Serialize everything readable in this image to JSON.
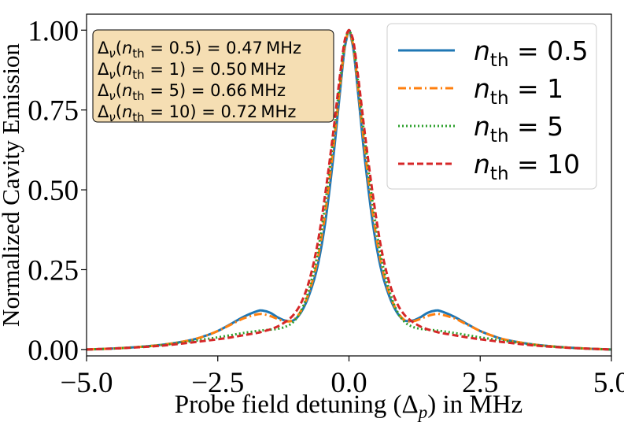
{
  "chart_data": {
    "type": "line",
    "title": "",
    "xlabel": "Probe field detuning (Δ",
    "xlabel_sub": "p",
    "xlabel_tail": ") in MHz",
    "ylabel": "Normalized Cavity Emission",
    "xlim": [
      -5.0,
      5.0
    ],
    "ylim": [
      -0.02,
      1.05
    ],
    "xticks": [
      -5.0,
      -2.5,
      0.0,
      2.5,
      5.0
    ],
    "xtick_labels": [
      "−5.0",
      "−2.5",
      "0.0",
      "2.5",
      "5.0"
    ],
    "yticks": [
      0.0,
      0.25,
      0.5,
      0.75,
      1.0
    ],
    "ytick_labels": [
      "0.00",
      "0.25",
      "0.50",
      "0.75",
      "1.00"
    ],
    "grid": false,
    "legend_position": "top-right",
    "x": [
      -5.0,
      -4.5,
      -4.0,
      -3.5,
      -3.0,
      -2.75,
      -2.5,
      -2.25,
      -2.0,
      -1.75,
      -1.65,
      -1.5,
      -1.35,
      -1.2,
      -1.05,
      -0.9,
      -0.75,
      -0.6,
      -0.45,
      -0.3,
      -0.2,
      -0.1,
      -0.05,
      0.0,
      0.05,
      0.1,
      0.2,
      0.3,
      0.45,
      0.6,
      0.75,
      0.9,
      1.05,
      1.2,
      1.35,
      1.5,
      1.65,
      1.75,
      2.0,
      2.25,
      2.5,
      2.75,
      3.0,
      3.5,
      4.0,
      4.5,
      5.0
    ],
    "series": [
      {
        "name": "n_th = 0.5",
        "legend_base": "n",
        "legend_sub": "th",
        "legend_value": "0.5",
        "color": "#1f77b4",
        "dash": "none",
        "values": [
          0.0,
          0.003,
          0.008,
          0.016,
          0.03,
          0.042,
          0.058,
          0.08,
          0.103,
          0.12,
          0.122,
          0.115,
          0.1,
          0.09,
          0.092,
          0.12,
          0.175,
          0.26,
          0.4,
          0.6,
          0.76,
          0.92,
          0.97,
          1.0,
          0.97,
          0.92,
          0.76,
          0.6,
          0.4,
          0.26,
          0.175,
          0.12,
          0.092,
          0.09,
          0.1,
          0.115,
          0.122,
          0.12,
          0.103,
          0.08,
          0.058,
          0.042,
          0.03,
          0.016,
          0.008,
          0.003,
          0.0
        ]
      },
      {
        "name": "n_th = 1",
        "legend_base": "n",
        "legend_sub": "th",
        "legend_value": "1",
        "color": "#ff7f0e",
        "dash": "10 4 2 4",
        "values": [
          0.0,
          0.003,
          0.008,
          0.016,
          0.03,
          0.042,
          0.058,
          0.078,
          0.098,
          0.11,
          0.111,
          0.105,
          0.095,
          0.088,
          0.093,
          0.125,
          0.185,
          0.28,
          0.43,
          0.63,
          0.78,
          0.93,
          0.975,
          1.0,
          0.975,
          0.93,
          0.78,
          0.63,
          0.43,
          0.28,
          0.185,
          0.125,
          0.093,
          0.088,
          0.095,
          0.105,
          0.111,
          0.11,
          0.098,
          0.078,
          0.058,
          0.042,
          0.03,
          0.016,
          0.008,
          0.003,
          0.0
        ]
      },
      {
        "name": "n_th = 5",
        "legend_base": "n",
        "legend_sub": "th",
        "legend_value": "5",
        "color": "#2ca02c",
        "dash": "2 3",
        "values": [
          0.0,
          0.003,
          0.008,
          0.015,
          0.026,
          0.032,
          0.038,
          0.045,
          0.052,
          0.058,
          0.06,
          0.062,
          0.065,
          0.072,
          0.088,
          0.125,
          0.195,
          0.3,
          0.46,
          0.66,
          0.8,
          0.94,
          0.98,
          1.0,
          0.98,
          0.94,
          0.8,
          0.66,
          0.46,
          0.3,
          0.195,
          0.125,
          0.088,
          0.072,
          0.065,
          0.062,
          0.06,
          0.058,
          0.052,
          0.045,
          0.038,
          0.032,
          0.026,
          0.015,
          0.008,
          0.003,
          0.0
        ]
      },
      {
        "name": "n_th = 10",
        "legend_base": "n",
        "legend_sub": "th",
        "legend_value": "10",
        "color": "#d62728",
        "dash": "8 4",
        "values": [
          0.0,
          0.003,
          0.007,
          0.013,
          0.022,
          0.027,
          0.032,
          0.038,
          0.045,
          0.052,
          0.056,
          0.063,
          0.073,
          0.088,
          0.11,
          0.15,
          0.22,
          0.33,
          0.49,
          0.68,
          0.82,
          0.95,
          0.985,
          1.0,
          0.985,
          0.95,
          0.82,
          0.68,
          0.49,
          0.33,
          0.22,
          0.15,
          0.11,
          0.088,
          0.073,
          0.063,
          0.056,
          0.052,
          0.045,
          0.038,
          0.032,
          0.027,
          0.022,
          0.013,
          0.007,
          0.003,
          0.0
        ]
      }
    ],
    "annotations": [
      {
        "nu_sub": "ν",
        "nth_sub": "th",
        "nth": "0.5",
        "value": "0.47",
        "unit": "MHz"
      },
      {
        "nu_sub": "ν",
        "nth_sub": "th",
        "nth": "1",
        "value": "0.50",
        "unit": "MHz"
      },
      {
        "nu_sub": "ν",
        "nth_sub": "th",
        "nth": "5",
        "value": "0.66",
        "unit": "MHz"
      },
      {
        "nu_sub": "ν",
        "nth_sub": "th",
        "nth": "10",
        "value": "0.72",
        "unit": "MHz"
      }
    ],
    "colors": {
      "annotation_fill": "#f5deb3",
      "axis": "#000000",
      "legend_border": "#cccccc"
    }
  }
}
